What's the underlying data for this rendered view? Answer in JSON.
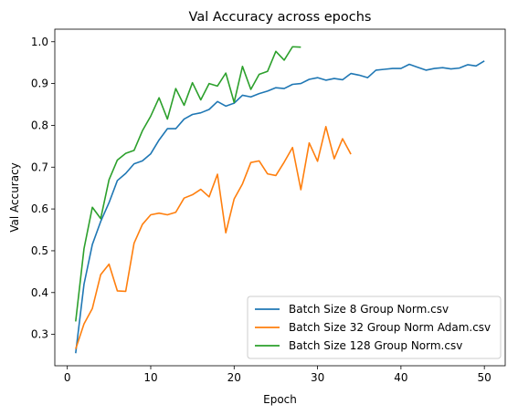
{
  "chart_data": {
    "type": "line",
    "title": "Val Accuracy across epochs",
    "xlabel": "Epoch",
    "ylabel": "Val Accuracy",
    "xlim": [
      -1.5,
      52.5
    ],
    "ylim": [
      0.225,
      1.03
    ],
    "xticks": [
      0,
      10,
      20,
      30,
      40,
      50
    ],
    "yticks": [
      0.3,
      0.4,
      0.5,
      0.6,
      0.7,
      0.8,
      0.9,
      1.0
    ],
    "ytick_labels": [
      "0.3",
      "0.4",
      "0.5",
      "0.6",
      "0.7",
      "0.8",
      "0.9",
      "1.0"
    ],
    "grid": false,
    "legend_position": "lower-right",
    "series": [
      {
        "name": "Batch Size 8 Group Norm.csv",
        "color": "#1f77b4",
        "x": [
          1,
          2,
          3,
          4,
          5,
          6,
          7,
          8,
          9,
          10,
          11,
          12,
          13,
          14,
          15,
          16,
          17,
          18,
          19,
          20,
          21,
          22,
          23,
          24,
          25,
          26,
          27,
          28,
          29,
          30,
          31,
          32,
          33,
          34,
          35,
          36,
          37,
          38,
          39,
          40,
          41,
          42,
          43,
          44,
          45,
          46,
          47,
          48,
          49,
          50
        ],
        "y": [
          0.255,
          0.42,
          0.515,
          0.57,
          0.615,
          0.668,
          0.685,
          0.708,
          0.715,
          0.732,
          0.765,
          0.792,
          0.792,
          0.815,
          0.826,
          0.83,
          0.838,
          0.857,
          0.846,
          0.853,
          0.872,
          0.868,
          0.876,
          0.882,
          0.89,
          0.888,
          0.898,
          0.9,
          0.91,
          0.914,
          0.908,
          0.912,
          0.909,
          0.924,
          0.92,
          0.914,
          0.932,
          0.934,
          0.936,
          0.936,
          0.946,
          0.939,
          0.932,
          0.936,
          0.938,
          0.935,
          0.937,
          0.945,
          0.942,
          0.954
        ]
      },
      {
        "name": "Batch Size 32 Group Norm Adam.csv",
        "color": "#ff7f0e",
        "x": [
          1,
          2,
          3,
          4,
          5,
          6,
          7,
          8,
          9,
          10,
          11,
          12,
          13,
          14,
          15,
          16,
          17,
          18,
          19,
          20,
          21,
          22,
          23,
          24,
          25,
          26,
          27,
          28,
          29,
          30,
          31,
          32,
          33,
          34
        ],
        "y": [
          0.265,
          0.325,
          0.362,
          0.443,
          0.468,
          0.404,
          0.403,
          0.518,
          0.563,
          0.586,
          0.59,
          0.586,
          0.592,
          0.626,
          0.634,
          0.647,
          0.629,
          0.683,
          0.543,
          0.624,
          0.66,
          0.711,
          0.715,
          0.684,
          0.68,
          0.712,
          0.747,
          0.646,
          0.758,
          0.714,
          0.797,
          0.72,
          0.768,
          0.731
        ]
      },
      {
        "name": "Batch Size 128 Group Norm.csv",
        "color": "#2ca02c",
        "x": [
          1,
          2,
          3,
          4,
          5,
          6,
          7,
          8,
          9,
          10,
          11,
          12,
          13,
          14,
          15,
          16,
          17,
          18,
          19,
          20,
          21,
          22,
          23,
          24,
          25,
          26,
          27,
          28
        ],
        "y": [
          0.331,
          0.505,
          0.604,
          0.577,
          0.67,
          0.717,
          0.733,
          0.74,
          0.787,
          0.822,
          0.866,
          0.815,
          0.888,
          0.848,
          0.902,
          0.861,
          0.9,
          0.894,
          0.925,
          0.855,
          0.941,
          0.886,
          0.922,
          0.929,
          0.977,
          0.956,
          0.988,
          0.987
        ]
      }
    ]
  }
}
